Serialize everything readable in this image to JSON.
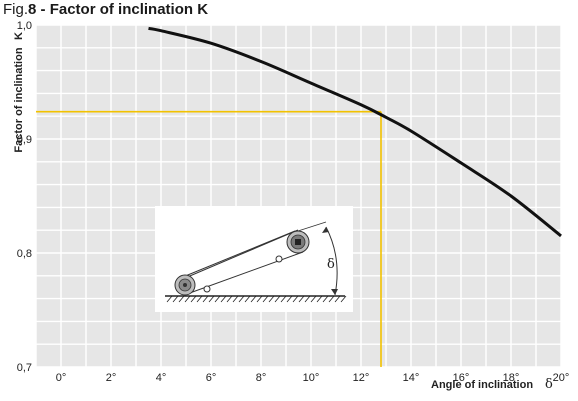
{
  "figure": {
    "prefix": "Fig.",
    "number_and_title": "8 - Factor of inclination K"
  },
  "chart_data": {
    "type": "line",
    "title": "Fig.8 - Factor of inclination K",
    "xlabel": "Angle of inclination",
    "xlabel_symbol": "δ",
    "ylabel": "Factor of inclination",
    "ylabel_symbol": "K",
    "xlim": [
      -1,
      20
    ],
    "ylim": [
      0.7,
      1.0
    ],
    "x_ticks": [
      0,
      2,
      4,
      6,
      8,
      10,
      12,
      14,
      16,
      18,
      20
    ],
    "x_tick_labels": [
      "0°",
      "2°",
      "4°",
      "6°",
      "8°",
      "10°",
      "12°",
      "14°",
      "16°",
      "18°",
      "20°"
    ],
    "y_ticks": [
      0.7,
      0.8,
      0.9,
      1.0
    ],
    "y_tick_labels": [
      "0,7",
      "0,8",
      "0,9",
      "1,0"
    ],
    "grid": true,
    "series": [
      {
        "x": [
          3.5,
          4,
          6,
          8,
          10,
          12,
          13,
          14,
          16,
          18,
          20
        ],
        "y": [
          0.997,
          0.995,
          0.984,
          0.968,
          0.949,
          0.93,
          0.919,
          0.907,
          0.879,
          0.85,
          0.815
        ]
      }
    ],
    "annotation": {
      "x": 12.8,
      "y": 0.924
    },
    "colors": {
      "curve": "#111111",
      "guide": "#f2c200",
      "plot_bg": "#e6e6e6",
      "grid": "#ffffff"
    }
  },
  "inset": {
    "angle_symbol": "δ"
  }
}
